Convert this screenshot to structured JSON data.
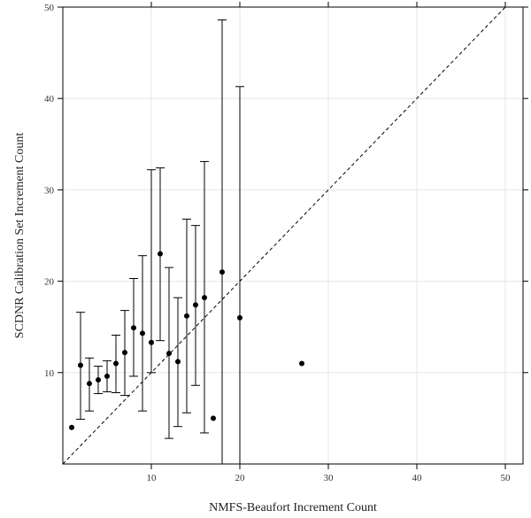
{
  "chart_data": {
    "type": "scatter",
    "title": "",
    "xlabel": "NMFS-Beaufort Increment Count",
    "ylabel": "SCDNR Calibration Set Increment Count",
    "xlim": [
      0,
      52
    ],
    "ylim": [
      0,
      50
    ],
    "xticks": [
      "10",
      "20",
      "30",
      "40",
      "50"
    ],
    "yticks": [
      "10",
      "20",
      "30",
      "40",
      "50"
    ],
    "grid": true,
    "reference_line": {
      "style": "dashed",
      "slope": 1,
      "intercept": 0
    },
    "points": [
      {
        "x": 1,
        "y": 4.0
      },
      {
        "x": 2,
        "y": 10.8,
        "low": 4.9,
        "high": 16.6
      },
      {
        "x": 3,
        "y": 8.8,
        "low": 5.8,
        "high": 11.6
      },
      {
        "x": 4,
        "y": 9.2,
        "low": 7.7,
        "high": 10.7
      },
      {
        "x": 5,
        "y": 9.6,
        "low": 7.9,
        "high": 11.3
      },
      {
        "x": 6,
        "y": 11.0,
        "low": 7.8,
        "high": 14.1
      },
      {
        "x": 7,
        "y": 12.2,
        "low": 7.5,
        "high": 16.8
      },
      {
        "x": 8,
        "y": 14.9,
        "low": 9.6,
        "high": 20.3
      },
      {
        "x": 9,
        "y": 14.3,
        "low": 5.8,
        "high": 22.8
      },
      {
        "x": 10,
        "y": 13.3,
        "low": 10.0,
        "high": 32.2
      },
      {
        "x": 11,
        "y": 23.0,
        "low": 13.5,
        "high": 32.4
      },
      {
        "x": 12,
        "y": 12.1,
        "low": 2.8,
        "high": 21.5
      },
      {
        "x": 13,
        "y": 11.2,
        "low": 4.1,
        "high": 18.2
      },
      {
        "x": 14,
        "y": 16.2,
        "low": 5.6,
        "high": 26.8
      },
      {
        "x": 15,
        "y": 17.4,
        "low": 8.6,
        "high": 26.1
      },
      {
        "x": 16,
        "y": 18.2,
        "low": 3.4,
        "high": 33.1
      },
      {
        "x": 17,
        "y": 5.0
      },
      {
        "x": 18,
        "y": 21.0,
        "low": 0,
        "high": 48.6
      },
      {
        "x": 20,
        "y": 16.0,
        "low": 0,
        "high": 41.3
      },
      {
        "x": 27,
        "y": 11.0
      }
    ]
  }
}
